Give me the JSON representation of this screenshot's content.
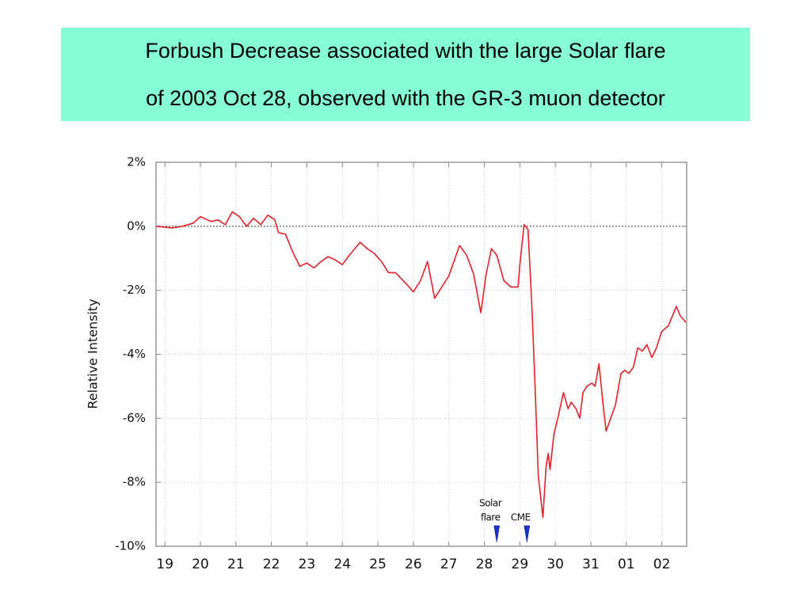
{
  "chart_data": {
    "type": "line",
    "title": [
      "Forbush Decrease associated with the large Solar flare",
      "of 2003 Oct 28, observed with the GR-3 muon detector"
    ],
    "ylabel": "Relative Intensity",
    "xlim": [
      -0.25,
      14.7
    ],
    "xticks": [
      {
        "value": 0,
        "label": "19"
      },
      {
        "value": 1,
        "label": "20"
      },
      {
        "value": 2,
        "label": "21"
      },
      {
        "value": 3,
        "label": "22"
      },
      {
        "value": 4,
        "label": "23"
      },
      {
        "value": 5,
        "label": "24"
      },
      {
        "value": 6,
        "label": "25"
      },
      {
        "value": 7,
        "label": "26"
      },
      {
        "value": 8,
        "label": "27"
      },
      {
        "value": 9,
        "label": "28"
      },
      {
        "value": 10,
        "label": "29"
      },
      {
        "value": 11,
        "label": "30"
      },
      {
        "value": 12,
        "label": "31"
      },
      {
        "value": 13,
        "label": "01"
      },
      {
        "value": 14,
        "label": "02"
      }
    ],
    "ylim": [
      -10,
      2
    ],
    "yticks": [
      {
        "value": -10,
        "label": "-10%"
      },
      {
        "value": -8,
        "label": "-8%"
      },
      {
        "value": -6,
        "label": "-6%"
      },
      {
        "value": -4,
        "label": "-4%"
      },
      {
        "value": -2,
        "label": "-2%"
      },
      {
        "value": 0,
        "label": "0%"
      },
      {
        "value": 2,
        "label": "2%"
      }
    ],
    "grid": true,
    "series": [
      {
        "color": "#e52128",
        "x": [
          -0.25,
          0.2,
          0.5,
          0.8,
          1.0,
          1.3,
          1.5,
          1.7,
          1.9,
          2.1,
          2.3,
          2.5,
          2.7,
          2.9,
          3.1,
          3.2,
          3.4,
          3.6,
          3.8,
          4.0,
          4.2,
          4.4,
          4.6,
          4.8,
          5.0,
          5.2,
          5.5,
          5.7,
          5.9,
          6.1,
          6.3,
          6.5,
          6.8,
          7.0,
          7.2,
          7.4,
          7.6,
          7.8,
          8.0,
          8.3,
          8.5,
          8.7,
          8.9,
          9.05,
          9.2,
          9.35,
          9.55,
          9.75,
          9.95,
          10.0,
          10.12,
          10.23,
          10.34,
          10.43,
          10.52,
          10.65,
          10.74,
          10.8,
          10.85,
          10.96,
          11.07,
          11.23,
          11.36,
          11.45,
          11.58,
          11.69,
          11.78,
          11.89,
          12.03,
          12.12,
          12.23,
          12.34,
          12.43,
          12.56,
          12.69,
          12.85,
          12.96,
          13.07,
          13.2,
          13.32,
          13.45,
          13.58,
          13.72,
          13.85,
          13.99,
          14.19,
          14.41,
          14.52,
          14.68
        ],
        "values": [
          0.0,
          -0.05,
          0.0,
          0.1,
          0.3,
          0.15,
          0.2,
          0.05,
          0.45,
          0.3,
          0.0,
          0.25,
          0.05,
          0.35,
          0.2,
          -0.2,
          -0.25,
          -0.8,
          -1.25,
          -1.15,
          -1.3,
          -1.1,
          -0.95,
          -1.05,
          -1.2,
          -0.9,
          -0.5,
          -0.7,
          -0.85,
          -1.1,
          -1.45,
          -1.45,
          -1.8,
          -2.05,
          -1.7,
          -1.1,
          -2.25,
          -1.9,
          -1.55,
          -0.6,
          -0.9,
          -1.5,
          -2.7,
          -1.5,
          -0.7,
          -0.9,
          -1.7,
          -1.9,
          -1.9,
          -1.2,
          0.05,
          -0.1,
          -2.5,
          -5.0,
          -7.8,
          -9.1,
          -7.5,
          -7.1,
          -7.6,
          -6.5,
          -6.0,
          -5.2,
          -5.7,
          -5.5,
          -5.7,
          -6.0,
          -5.2,
          -5.0,
          -4.9,
          -5.0,
          -4.3,
          -5.5,
          -6.4,
          -6.0,
          -5.6,
          -4.6,
          -4.5,
          -4.6,
          -4.4,
          -3.8,
          -3.9,
          -3.7,
          -4.1,
          -3.8,
          -3.3,
          -3.1,
          -2.5,
          -2.8,
          -3.0
        ]
      }
    ],
    "annotations": [
      {
        "lines": [
          "Solar",
          "flare"
        ],
        "x": 9.35,
        "color": "#1a2fd0"
      },
      {
        "lines": [
          "CME"
        ],
        "x": 10.2,
        "color": "#1a2fd0"
      }
    ]
  }
}
